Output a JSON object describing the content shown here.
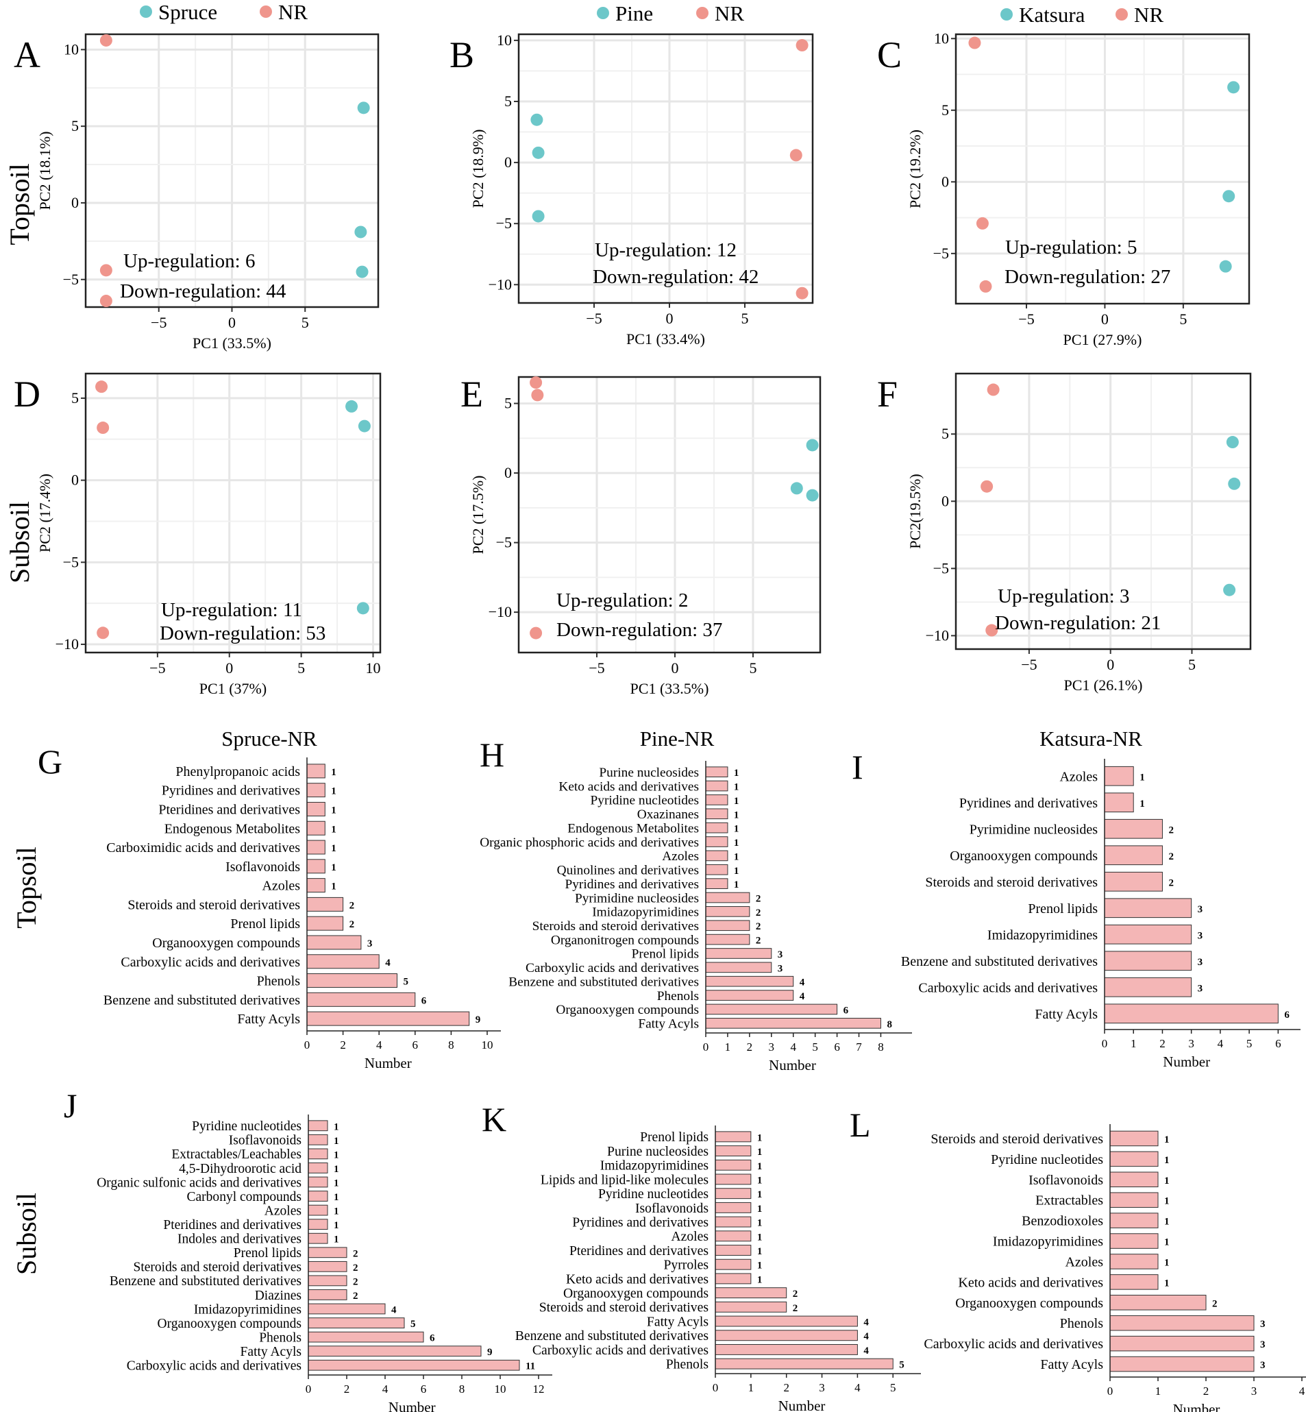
{
  "colors": {
    "tree": "#6cc7c9",
    "nr": "#ef958c",
    "bar_fill": "#f4b6b6",
    "bar_stroke": "#333333",
    "grid": "#e6e6e6"
  },
  "row_labels": {
    "topsoil": "Topsoil",
    "subsoil": "Subsoil"
  },
  "chart_data": [
    {
      "id": "A",
      "type": "scatter",
      "panel_letter": "A",
      "legend": [
        "Spruce",
        "NR"
      ],
      "xlabel": "PC1 (33.5%)",
      "ylabel": "PC2 (18.1%)",
      "xlim": [
        -10,
        10
      ],
      "ylim": [
        -6.8,
        11
      ],
      "xticks": [
        -5,
        0,
        5
      ],
      "yticks": [
        -5,
        0,
        5,
        10
      ],
      "series": [
        {
          "name": "Spruce",
          "points": [
            [
              9,
              6.2
            ],
            [
              8.8,
              -1.9
            ],
            [
              8.9,
              -4.5
            ]
          ]
        },
        {
          "name": "NR",
          "points": [
            [
              -8.6,
              10.6
            ],
            [
              -8.6,
              -4.4
            ],
            [
              -8.6,
              -6.4
            ]
          ]
        }
      ],
      "annotations": [
        "Up-regulation: 6",
        "Down-regulation: 44"
      ]
    },
    {
      "id": "B",
      "type": "scatter",
      "panel_letter": "B",
      "legend": [
        "Pine",
        "NR"
      ],
      "xlabel": "PC1 (33.4%)",
      "ylabel": "PC2 (18.9%)",
      "xlim": [
        -10,
        9.5
      ],
      "ylim": [
        -11.5,
        10.5
      ],
      "xticks": [
        -5,
        0,
        5
      ],
      "yticks": [
        -10,
        -5,
        0,
        5,
        10
      ],
      "series": [
        {
          "name": "Pine",
          "points": [
            [
              -8.8,
              3.5
            ],
            [
              -8.7,
              0.8
            ],
            [
              -8.7,
              -4.4
            ]
          ]
        },
        {
          "name": "NR",
          "points": [
            [
              8.8,
              9.6
            ],
            [
              8.4,
              0.6
            ],
            [
              8.8,
              -10.7
            ]
          ]
        }
      ],
      "annotations": [
        "Up-regulation: 12",
        "Down-regulation: 42"
      ]
    },
    {
      "id": "C",
      "type": "scatter",
      "panel_letter": "C",
      "legend": [
        "Katsura",
        "NR"
      ],
      "xlabel": "PC1 (27.9%)",
      "ylabel": "PC2 (19.2%)",
      "xlim": [
        -9.5,
        9.2
      ],
      "ylim": [
        -8.5,
        10.3
      ],
      "xticks": [
        -5,
        0,
        5
      ],
      "yticks": [
        -5,
        0,
        5,
        10
      ],
      "series": [
        {
          "name": "Katsura",
          "points": [
            [
              8.2,
              6.6
            ],
            [
              7.9,
              -1.0
            ],
            [
              7.7,
              -5.9
            ]
          ]
        },
        {
          "name": "NR",
          "points": [
            [
              -8.3,
              9.7
            ],
            [
              -7.8,
              -2.9
            ],
            [
              -7.6,
              -7.3
            ]
          ]
        }
      ],
      "annotations": [
        "Up-regulation: 5",
        "Down-regulation: 27"
      ]
    },
    {
      "id": "D",
      "type": "scatter",
      "panel_letter": "D",
      "xlabel": "PC1 (37%)",
      "ylabel": "PC2 (17.4%)",
      "xlim": [
        -10,
        10.5
      ],
      "ylim": [
        -10.5,
        6.5
      ],
      "xticks": [
        -5,
        0,
        5,
        10
      ],
      "yticks": [
        -10,
        -5,
        0,
        5
      ],
      "series": [
        {
          "name": "Spruce",
          "points": [
            [
              8.5,
              4.5
            ],
            [
              9.4,
              3.3
            ],
            [
              9.3,
              -7.8
            ]
          ]
        },
        {
          "name": "NR",
          "points": [
            [
              -8.9,
              5.7
            ],
            [
              -8.8,
              3.2
            ],
            [
              -8.8,
              -9.3
            ]
          ]
        }
      ],
      "annotations": [
        "Up-regulation: 11",
        "Down-regulation: 53"
      ]
    },
    {
      "id": "E",
      "type": "scatter",
      "panel_letter": "E",
      "xlabel": "PC1 (33.5%)",
      "ylabel": "PC2 (17.5%)",
      "xlim": [
        -10,
        9.3
      ],
      "ylim": [
        -12.9,
        6.9
      ],
      "xticks": [
        -5,
        0,
        5
      ],
      "yticks": [
        -10,
        -5,
        0,
        5
      ],
      "series": [
        {
          "name": "Pine",
          "points": [
            [
              8.8,
              2.0
            ],
            [
              7.8,
              -1.1
            ],
            [
              8.8,
              -1.6
            ]
          ]
        },
        {
          "name": "NR",
          "points": [
            [
              -8.9,
              6.5
            ],
            [
              -8.8,
              5.6
            ],
            [
              -8.9,
              -11.5
            ]
          ]
        }
      ],
      "annotations": [
        "Up-regulation: 2",
        "Down-regulation: 37"
      ]
    },
    {
      "id": "F",
      "type": "scatter",
      "panel_letter": "F",
      "xlabel": "PC1 (26.1%)",
      "ylabel": "PC2(19.5%)",
      "xlim": [
        -9.5,
        8.6
      ],
      "ylim": [
        -11,
        9.5
      ],
      "xticks": [
        -5,
        0,
        5
      ],
      "yticks": [
        -10,
        -5,
        0,
        5
      ],
      "series": [
        {
          "name": "Katsura",
          "points": [
            [
              7.5,
              4.4
            ],
            [
              7.6,
              1.3
            ],
            [
              7.3,
              -6.6
            ]
          ]
        },
        {
          "name": "NR",
          "points": [
            [
              -7.2,
              8.3
            ],
            [
              -7.6,
              1.1
            ],
            [
              -7.3,
              -9.6
            ]
          ]
        }
      ],
      "annotations": [
        "Up-regulation: 3",
        "Down-regulation: 21"
      ]
    },
    {
      "id": "G",
      "type": "bar",
      "orientation": "horizontal",
      "panel_letter": "G",
      "title": "Spruce-NR",
      "xlabel": "Number",
      "xlim": [
        0,
        10
      ],
      "xticks": [
        0,
        2,
        4,
        6,
        8,
        10
      ],
      "categories": [
        "Phenylpropanoic acids",
        "Pyridines and derivatives",
        "Pteridines and derivatives",
        "Endogenous Metabolites",
        "Carboximidic acids and derivatives",
        "Isoflavonoids",
        "Azoles",
        "Steroids and steroid derivatives",
        "Prenol lipids",
        "Organooxygen compounds",
        "Carboxylic acids and derivatives",
        "Phenols",
        "Benzene and substituted derivatives",
        "Fatty Acyls"
      ],
      "values": [
        1,
        1,
        1,
        1,
        1,
        1,
        1,
        2,
        2,
        3,
        4,
        5,
        6,
        9
      ]
    },
    {
      "id": "H",
      "type": "bar",
      "orientation": "horizontal",
      "panel_letter": "H",
      "title": "Pine-NR",
      "xlabel": "Number",
      "xlim": [
        0,
        8.8
      ],
      "xticks": [
        0,
        1,
        2,
        3,
        4,
        5,
        6,
        7,
        8
      ],
      "xtick_labels": [
        "0",
        "1",
        "2",
        "3",
        "4",
        "5",
        "6",
        "7",
        "8"
      ],
      "categories": [
        "Purine nucleosides",
        "Keto acids and derivatives",
        "Pyridine nucleotides",
        "Oxazinanes",
        "Endogenous Metabolites",
        "Organic phosphoric acids and derivatives",
        "Azoles",
        "Quinolines and derivatives",
        "Pyridines and derivatives",
        "Pyrimidine nucleosides",
        "Imidazopyrimidines",
        "Steroids and steroid derivatives",
        "Organonitrogen compounds",
        "Prenol lipids",
        "Carboxylic acids and derivatives",
        "Benzene and substituted derivatives",
        "Phenols",
        "Organooxygen compounds",
        "Fatty Acyls"
      ],
      "values": [
        1,
        1,
        1,
        1,
        1,
        1,
        1,
        1,
        1,
        2,
        2,
        2,
        2,
        3,
        3,
        4,
        4,
        6,
        8
      ]
    },
    {
      "id": "I",
      "type": "bar",
      "orientation": "horizontal",
      "panel_letter": "I",
      "title": "Katsura-NR",
      "xlabel": "Number",
      "xlim": [
        0,
        6.3
      ],
      "xticks": [
        0,
        1,
        2,
        3,
        4,
        5,
        6
      ],
      "categories": [
        "Azoles",
        "Pyridines and derivatives",
        "Pyrimidine nucleosides",
        "Organooxygen compounds",
        "Steroids and steroid derivatives",
        "Prenol lipids",
        "Imidazopyrimidines",
        "Benzene and substituted derivatives",
        "Carboxylic acids and derivatives",
        "Fatty Acyls"
      ],
      "values": [
        1,
        1,
        2,
        2,
        2,
        3,
        3,
        3,
        3,
        6
      ]
    },
    {
      "id": "J",
      "type": "bar",
      "orientation": "horizontal",
      "panel_letter": "J",
      "title": "",
      "xlabel": "Number",
      "xlim": [
        0,
        12
      ],
      "xticks": [
        0,
        2,
        4,
        6,
        8,
        10,
        12
      ],
      "categories": [
        "Pyridine nucleotides",
        "Isoflavonoids",
        "Extractables/Leachables",
        "4,5-Dihydroorotic acid",
        "Organic sulfonic acids and derivatives",
        "Carbonyl compounds",
        "Azoles",
        "Pteridines and derivatives",
        "Indoles and derivatives",
        "Prenol lipids",
        "Steroids and steroid derivatives",
        "Benzene and substituted derivatives",
        "Diazines",
        "Imidazopyrimidines",
        "Organooxygen compounds",
        "Phenols",
        "Fatty Acyls",
        "Carboxylic acids and derivatives"
      ],
      "values": [
        1,
        1,
        1,
        1,
        1,
        1,
        1,
        1,
        1,
        2,
        2,
        2,
        2,
        4,
        5,
        6,
        9,
        11
      ]
    },
    {
      "id": "K",
      "type": "bar",
      "orientation": "horizontal",
      "panel_letter": "K",
      "title": "",
      "xlabel": "Number",
      "xlim": [
        0,
        5.4
      ],
      "xticks": [
        0,
        1,
        2,
        3,
        4,
        5
      ],
      "categories": [
        "Prenol lipids",
        "Purine nucleosides",
        "Imidazopyrimidines",
        "Lipids and lipid-like molecules",
        "Pyridine nucleotides",
        "Isoflavonoids",
        "Pyridines and derivatives",
        "Azoles",
        "Pteridines and derivatives",
        "Pyrroles",
        "Keto acids and derivatives",
        "Organooxygen compounds",
        "Steroids and steroid derivatives",
        "Fatty Acyls",
        "Benzene and substituted derivatives",
        "Carboxylic acids and derivatives",
        "Phenols"
      ],
      "values": [
        1,
        1,
        1,
        1,
        1,
        1,
        1,
        1,
        1,
        1,
        1,
        2,
        2,
        4,
        4,
        4,
        5
      ]
    },
    {
      "id": "L",
      "type": "bar",
      "orientation": "horizontal",
      "panel_letter": "L",
      "title": "",
      "xlabel": "Number",
      "xlim": [
        0,
        4
      ],
      "xticks": [
        0,
        1,
        2,
        3,
        4
      ],
      "categories": [
        "Steroids and steroid derivatives",
        "Pyridine nucleotides",
        "Isoflavonoids",
        "Extractables",
        "Benzodioxoles",
        "Imidazopyrimidines",
        "Azoles",
        "Keto acids and derivatives",
        "Organooxygen compounds",
        "Phenols",
        "Carboxylic acids and derivatives",
        "Fatty Acyls"
      ],
      "values": [
        1,
        1,
        1,
        1,
        1,
        1,
        1,
        1,
        2,
        3,
        3,
        3
      ]
    }
  ]
}
